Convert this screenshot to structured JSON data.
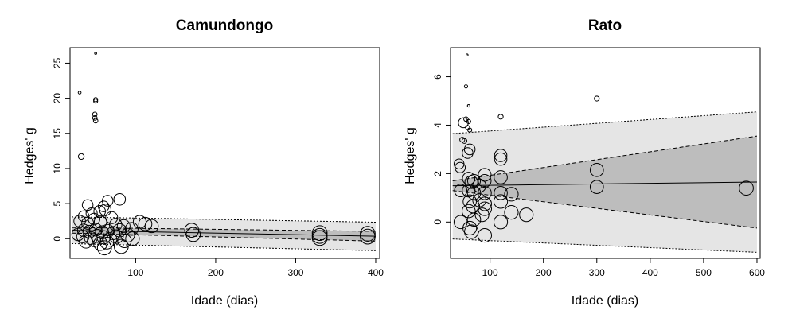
{
  "chart_data": [
    {
      "type": "scatter",
      "title": "Camundongo",
      "xlabel": "Idade (dias)",
      "ylabel": "Hedges' g",
      "xlim": [
        18,
        405
      ],
      "ylim": [
        -2.8,
        27.2
      ],
      "xticks": [
        100,
        200,
        300,
        400
      ],
      "yticks": [
        0,
        5,
        10,
        15,
        20,
        25
      ],
      "xtick_labels": [
        "100",
        "200",
        "300",
        "400"
      ],
      "ytick_labels": [
        "0",
        "5",
        "10",
        "15",
        "20",
        "25"
      ],
      "grid": false,
      "colors": {
        "outer_band": "#e5e5e5",
        "inner_band": "#bdbdbd",
        "points": "#000000"
      },
      "regression": {
        "x": [
          20,
          400
        ],
        "fit": [
          1.2,
          0.35
        ]
      },
      "confidence_band": {
        "x": [
          20,
          400
        ],
        "lower": [
          0.8,
          -0.35
        ],
        "upper": [
          1.6,
          1.05
        ]
      },
      "prediction_band": {
        "x": [
          20,
          400
        ],
        "lower": [
          -0.7,
          -1.7
        ],
        "upper": [
          3.1,
          2.35
        ]
      },
      "points": [
        {
          "x": 50,
          "y": 26.4,
          "s": 0.5
        },
        {
          "x": 30,
          "y": 20.8,
          "s": 0.7
        },
        {
          "x": 50,
          "y": 19.8,
          "s": 1.0
        },
        {
          "x": 50,
          "y": 19.6,
          "s": 1.0
        },
        {
          "x": 49,
          "y": 17.7,
          "s": 1.1
        },
        {
          "x": 49,
          "y": 17.2,
          "s": 1.1
        },
        {
          "x": 50,
          "y": 16.8,
          "s": 1.1
        },
        {
          "x": 32,
          "y": 11.7,
          "s": 1.4
        },
        {
          "x": 40,
          "y": 4.8,
          "s": 2.6
        },
        {
          "x": 65,
          "y": 5.4,
          "s": 2.6
        },
        {
          "x": 80,
          "y": 5.6,
          "s": 2.8
        },
        {
          "x": 60,
          "y": 4.6,
          "s": 2.6
        },
        {
          "x": 35,
          "y": 3.2,
          "s": 2.6
        },
        {
          "x": 45,
          "y": 3.6,
          "s": 2.7
        },
        {
          "x": 55,
          "y": 3.9,
          "s": 2.8
        },
        {
          "x": 62,
          "y": 4.1,
          "s": 2.8
        },
        {
          "x": 48,
          "y": 2.8,
          "s": 2.8
        },
        {
          "x": 70,
          "y": 3.0,
          "s": 2.9
        },
        {
          "x": 30,
          "y": 2.5,
          "s": 2.8
        },
        {
          "x": 40,
          "y": 2.2,
          "s": 2.9
        },
        {
          "x": 56,
          "y": 2.4,
          "s": 3.0
        },
        {
          "x": 75,
          "y": 2.0,
          "s": 3.0
        },
        {
          "x": 85,
          "y": 1.8,
          "s": 3.1
        },
        {
          "x": 95,
          "y": 1.4,
          "s": 3.1
        },
        {
          "x": 105,
          "y": 2.4,
          "s": 3.1
        },
        {
          "x": 112,
          "y": 2.1,
          "s": 3.2
        },
        {
          "x": 120,
          "y": 1.8,
          "s": 3.2
        },
        {
          "x": 35,
          "y": 1.2,
          "s": 3.0
        },
        {
          "x": 42,
          "y": 1.0,
          "s": 3.1
        },
        {
          "x": 50,
          "y": 1.3,
          "s": 3.1
        },
        {
          "x": 58,
          "y": 0.9,
          "s": 3.2
        },
        {
          "x": 65,
          "y": 1.1,
          "s": 3.2
        },
        {
          "x": 72,
          "y": 0.8,
          "s": 3.2
        },
        {
          "x": 80,
          "y": 1.2,
          "s": 3.2
        },
        {
          "x": 90,
          "y": 0.5,
          "s": 3.3
        },
        {
          "x": 28,
          "y": 0.6,
          "s": 3.0
        },
        {
          "x": 34,
          "y": 0.3,
          "s": 3.0
        },
        {
          "x": 44,
          "y": 0.1,
          "s": 3.1
        },
        {
          "x": 52,
          "y": 0.4,
          "s": 3.2
        },
        {
          "x": 60,
          "y": 0.2,
          "s": 3.2
        },
        {
          "x": 68,
          "y": -0.1,
          "s": 3.3
        },
        {
          "x": 76,
          "y": 0.3,
          "s": 3.3
        },
        {
          "x": 86,
          "y": -0.3,
          "s": 3.3
        },
        {
          "x": 38,
          "y": -0.4,
          "s": 3.2
        },
        {
          "x": 48,
          "y": -0.2,
          "s": 3.2
        },
        {
          "x": 56,
          "y": -0.7,
          "s": 3.3
        },
        {
          "x": 64,
          "y": -0.5,
          "s": 3.3
        },
        {
          "x": 61,
          "y": -1.3,
          "s": 3.4
        },
        {
          "x": 82,
          "y": -1.1,
          "s": 3.4
        },
        {
          "x": 96,
          "y": 0.0,
          "s": 3.3
        },
        {
          "x": 170,
          "y": 1.2,
          "s": 3.4
        },
        {
          "x": 172,
          "y": 0.6,
          "s": 3.4
        },
        {
          "x": 330,
          "y": 0.8,
          "s": 3.6
        },
        {
          "x": 330,
          "y": 0.4,
          "s": 3.6
        },
        {
          "x": 330,
          "y": 0.1,
          "s": 3.6
        },
        {
          "x": 390,
          "y": 0.7,
          "s": 3.6
        },
        {
          "x": 390,
          "y": 0.3,
          "s": 3.6
        }
      ]
    },
    {
      "type": "scatter",
      "title": "Rato",
      "xlabel": "Idade (dias)",
      "ylabel": "Hedges' g",
      "xlim": [
        26,
        606
      ],
      "ylim": [
        -1.5,
        7.2
      ],
      "xticks": [
        100,
        200,
        300,
        400,
        500,
        600
      ],
      "yticks": [
        0,
        2,
        4,
        6
      ],
      "xtick_labels": [
        "100",
        "200",
        "300",
        "400",
        "500",
        "600"
      ],
      "ytick_labels": [
        "0",
        "2",
        "4",
        "6"
      ],
      "grid": false,
      "colors": {
        "outer_band": "#e5e5e5",
        "inner_band": "#bdbdbd",
        "points": "#000000"
      },
      "regression": {
        "x": [
          30,
          600
        ],
        "fit": [
          1.5,
          1.65
        ]
      },
      "confidence_band": {
        "x": [
          30,
          600
        ],
        "lower": [
          1.3,
          -0.25
        ],
        "upper": [
          1.7,
          3.55
        ]
      },
      "prediction_band": {
        "x": [
          30,
          600
        ],
        "lower": [
          -0.7,
          -1.25
        ],
        "upper": [
          3.65,
          4.55
        ]
      },
      "points": [
        {
          "x": 57,
          "y": 6.9,
          "s": 0.5
        },
        {
          "x": 55,
          "y": 5.6,
          "s": 0.8
        },
        {
          "x": 60,
          "y": 4.8,
          "s": 0.6
        },
        {
          "x": 55,
          "y": 4.25,
          "s": 1.1
        },
        {
          "x": 60,
          "y": 4.15,
          "s": 1.0
        },
        {
          "x": 50,
          "y": 4.1,
          "s": 2.4
        },
        {
          "x": 58,
          "y": 3.9,
          "s": 1.0
        },
        {
          "x": 62,
          "y": 3.8,
          "s": 1.0
        },
        {
          "x": 120,
          "y": 4.35,
          "s": 1.2
        },
        {
          "x": 300,
          "y": 5.1,
          "s": 1.2
        },
        {
          "x": 48,
          "y": 3.4,
          "s": 1.2
        },
        {
          "x": 52,
          "y": 3.35,
          "s": 1.2
        },
        {
          "x": 62,
          "y": 3.0,
          "s": 2.6
        },
        {
          "x": 58,
          "y": 2.85,
          "s": 2.6
        },
        {
          "x": 42,
          "y": 2.4,
          "s": 2.4
        },
        {
          "x": 44,
          "y": 2.25,
          "s": 2.5
        },
        {
          "x": 120,
          "y": 2.75,
          "s": 3.0
        },
        {
          "x": 120,
          "y": 2.6,
          "s": 3.0
        },
        {
          "x": 60,
          "y": 1.8,
          "s": 3.0
        },
        {
          "x": 65,
          "y": 1.65,
          "s": 3.1
        },
        {
          "x": 70,
          "y": 1.7,
          "s": 3.1
        },
        {
          "x": 90,
          "y": 1.95,
          "s": 3.1
        },
        {
          "x": 90,
          "y": 1.7,
          "s": 3.1
        },
        {
          "x": 120,
          "y": 1.85,
          "s": 3.2
        },
        {
          "x": 300,
          "y": 2.15,
          "s": 3.2
        },
        {
          "x": 300,
          "y": 1.45,
          "s": 3.2
        },
        {
          "x": 60,
          "y": 1.3,
          "s": 3.1
        },
        {
          "x": 70,
          "y": 1.2,
          "s": 3.2
        },
        {
          "x": 45,
          "y": 1.3,
          "s": 3.0
        },
        {
          "x": 80,
          "y": 1.5,
          "s": 3.2
        },
        {
          "x": 90,
          "y": 1.2,
          "s": 3.2
        },
        {
          "x": 120,
          "y": 1.2,
          "s": 3.2
        },
        {
          "x": 140,
          "y": 1.15,
          "s": 3.3
        },
        {
          "x": 62,
          "y": 0.85,
          "s": 3.2
        },
        {
          "x": 68,
          "y": 0.65,
          "s": 3.2
        },
        {
          "x": 80,
          "y": 0.9,
          "s": 3.2
        },
        {
          "x": 90,
          "y": 0.75,
          "s": 3.3
        },
        {
          "x": 120,
          "y": 0.85,
          "s": 3.3
        },
        {
          "x": 60,
          "y": 0.45,
          "s": 3.2
        },
        {
          "x": 85,
          "y": 0.3,
          "s": 3.3
        },
        {
          "x": 90,
          "y": 0.55,
          "s": 3.3
        },
        {
          "x": 140,
          "y": 0.4,
          "s": 3.3
        },
        {
          "x": 168,
          "y": 0.3,
          "s": 3.3
        },
        {
          "x": 45,
          "y": 0.0,
          "s": 3.2
        },
        {
          "x": 70,
          "y": 0.1,
          "s": 3.2
        },
        {
          "x": 120,
          "y": 0.0,
          "s": 3.3
        },
        {
          "x": 62,
          "y": -0.25,
          "s": 3.3
        },
        {
          "x": 65,
          "y": -0.4,
          "s": 3.3
        },
        {
          "x": 90,
          "y": -0.55,
          "s": 3.3
        },
        {
          "x": 580,
          "y": 1.4,
          "s": 3.4
        }
      ]
    }
  ]
}
